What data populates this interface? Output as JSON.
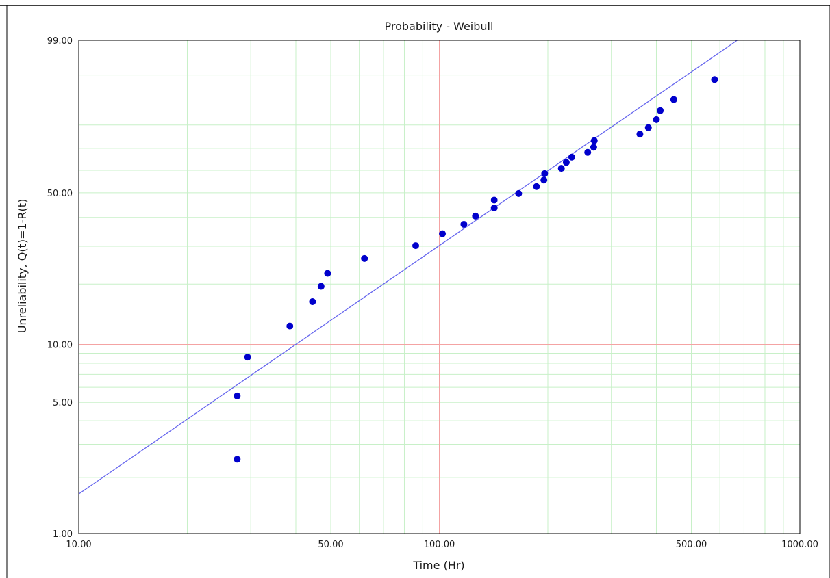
{
  "chart_data": {
    "type": "scatter",
    "title": "Probability - Weibull",
    "xlabel": "Time (Hr)",
    "ylabel": "Unreliability, Q(t)=1-R(t)",
    "x_scale": "log",
    "y_scale": "weibull",
    "xlim": [
      10,
      1000
    ],
    "ylim": [
      1,
      99
    ],
    "x_tick_labels": [
      "10.00",
      "50.00",
      "100.00",
      "500.00",
      "1000.00"
    ],
    "y_tick_labels": [
      "1.00",
      "5.00",
      "10.00",
      "50.00",
      "99.00"
    ],
    "grid": true,
    "legend": "none",
    "series": [
      {
        "type": "scatter",
        "color": "#0000cc",
        "points": [
          {
            "x": 27.5,
            "y": 2.5
          },
          {
            "x": 27.5,
            "y": 5.4
          },
          {
            "x": 29.4,
            "y": 8.6
          },
          {
            "x": 38.5,
            "y": 12.4
          },
          {
            "x": 44.5,
            "y": 16.4
          },
          {
            "x": 47.0,
            "y": 19.5
          },
          {
            "x": 49.0,
            "y": 22.5
          },
          {
            "x": 62.0,
            "y": 26.4
          },
          {
            "x": 86.0,
            "y": 30.2
          },
          {
            "x": 102.0,
            "y": 34.1
          },
          {
            "x": 117.0,
            "y": 37.4
          },
          {
            "x": 126.0,
            "y": 40.5
          },
          {
            "x": 142.0,
            "y": 43.7
          },
          {
            "x": 142.0,
            "y": 46.9
          },
          {
            "x": 166.0,
            "y": 49.7
          },
          {
            "x": 186.0,
            "y": 52.7
          },
          {
            "x": 195.0,
            "y": 55.6
          },
          {
            "x": 196.0,
            "y": 58.5
          },
          {
            "x": 218.0,
            "y": 60.9
          },
          {
            "x": 225.0,
            "y": 63.6
          },
          {
            "x": 233.0,
            "y": 66.0
          },
          {
            "x": 258.0,
            "y": 68.2
          },
          {
            "x": 268.0,
            "y": 70.5
          },
          {
            "x": 269.0,
            "y": 73.4
          },
          {
            "x": 360.0,
            "y": 76.2
          },
          {
            "x": 380.0,
            "y": 78.9
          },
          {
            "x": 400.0,
            "y": 82.1
          },
          {
            "x": 410.0,
            "y": 85.4
          },
          {
            "x": 447.0,
            "y": 89.0
          },
          {
            "x": 580.0,
            "y": 94.1
          }
        ]
      },
      {
        "type": "line",
        "color": "#6666ee",
        "points": [
          {
            "x": 10,
            "y": 1.63
          },
          {
            "x": 670,
            "y": 99.0
          }
        ]
      }
    ],
    "reference_lines": [
      {
        "axis": "x",
        "value": 100,
        "color": "#f4a3a3"
      },
      {
        "axis": "y",
        "value": 10,
        "color": "#f4a3a3"
      }
    ]
  }
}
